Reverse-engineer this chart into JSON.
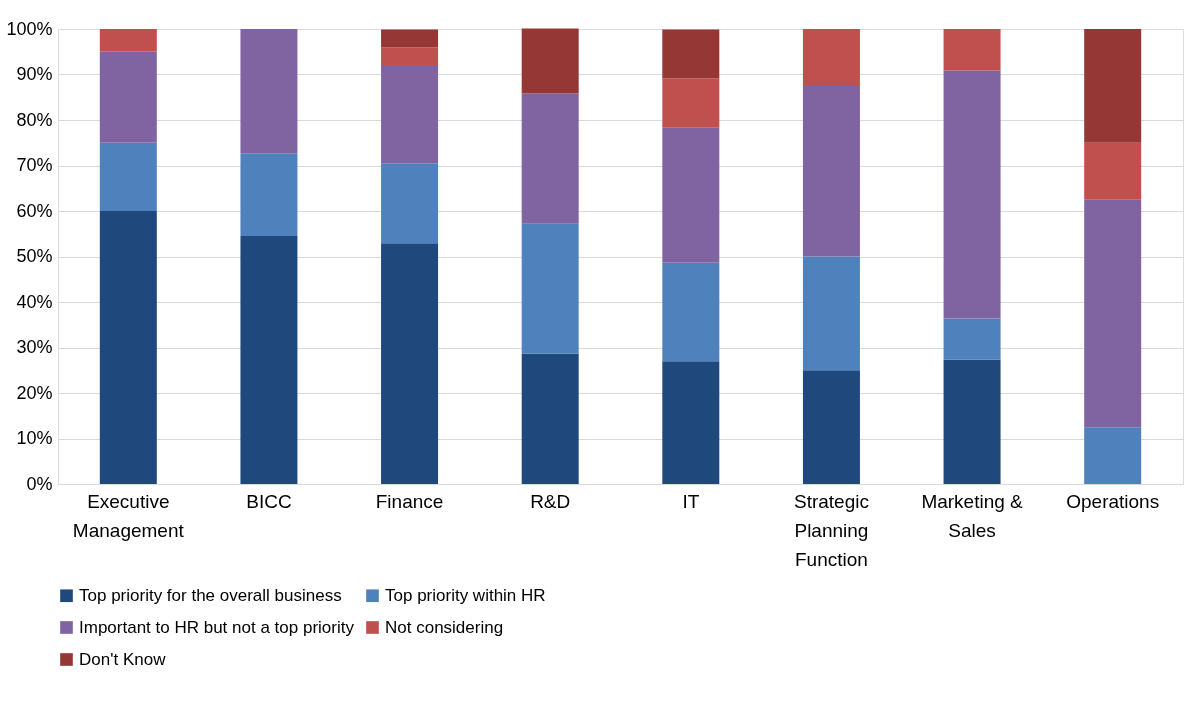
{
  "chart_data": {
    "type": "bar",
    "stacked": true,
    "categories": [
      "Executive Management",
      "BICC",
      "Finance",
      "R&D",
      "IT",
      "Strategic Planning Function",
      "Marketing & Sales",
      "Operations"
    ],
    "series": [
      {
        "name": "Top priority for the overall business",
        "color": "#1f497d",
        "values": [
          60,
          54.5,
          52.9,
          28.6,
          27.0,
          25,
          27.3,
          0
        ]
      },
      {
        "name": "Top priority within HR",
        "color": "#4f81bd",
        "values": [
          15,
          18.2,
          17.6,
          28.6,
          21.6,
          25,
          9.1,
          12.5
        ]
      },
      {
        "name": "Important to HR but not a top priority",
        "color": "#8064a2",
        "values": [
          20,
          27.3,
          21.6,
          28.6,
          29.7,
          37.5,
          54.5,
          50
        ]
      },
      {
        "name": "Not considering",
        "color": "#c0504d",
        "values": [
          5,
          0,
          3.9,
          0,
          10.8,
          12.5,
          9.1,
          12.5
        ]
      },
      {
        "name": "Don't Know",
        "color": "#953735",
        "values": [
          0,
          0,
          3.9,
          14.3,
          10.8,
          0,
          0,
          25
        ]
      }
    ],
    "ylim": [
      0,
      100
    ],
    "yticks": [
      {
        "value": 0,
        "label": "0%"
      },
      {
        "value": 10,
        "label": "10%"
      },
      {
        "value": 20,
        "label": "20%"
      },
      {
        "value": 30,
        "label": "30%"
      },
      {
        "value": 40,
        "label": "40%"
      },
      {
        "value": 50,
        "label": "50%"
      },
      {
        "value": 60,
        "label": "60%"
      },
      {
        "value": 70,
        "label": "70%"
      },
      {
        "value": 80,
        "label": "80%"
      },
      {
        "value": 90,
        "label": "90%"
      },
      {
        "value": 100,
        "label": "100%"
      }
    ],
    "grid": "y",
    "legend": "bottom"
  }
}
